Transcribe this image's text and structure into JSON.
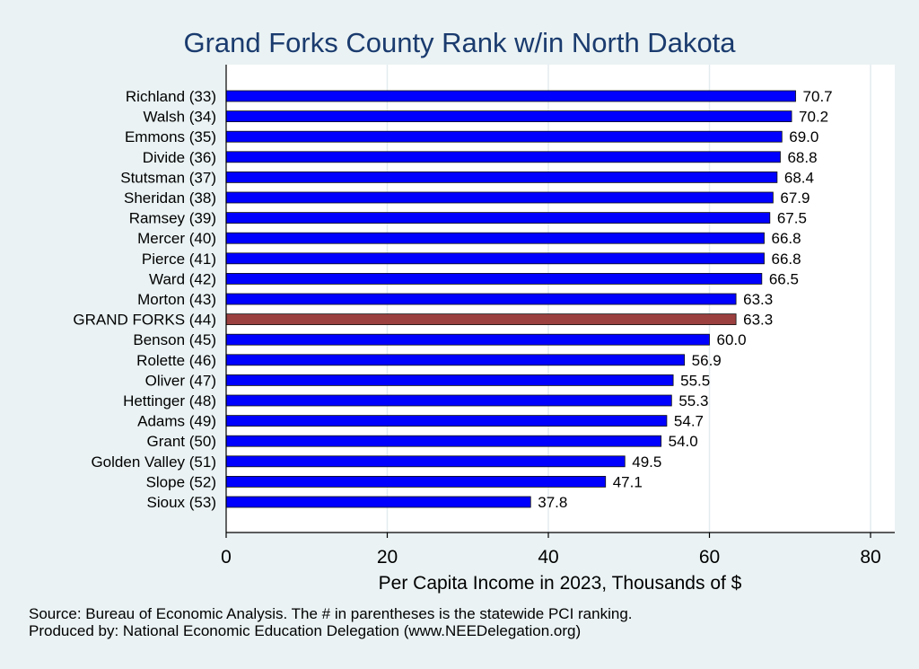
{
  "chart_data": {
    "type": "bar",
    "orientation": "horizontal",
    "title": "Grand Forks County Rank w/in North Dakota",
    "xlabel": "Per Capita Income in 2023, Thousands of $",
    "ylabel": "",
    "xlim": [
      0,
      80
    ],
    "xticks": [
      0,
      20,
      40,
      60,
      80
    ],
    "grid": true,
    "highlight_category": "GRAND FORKS (44)",
    "colors": {
      "bar": "#0000ff",
      "highlight": "#9b3f3f",
      "title": "#1a3b6e",
      "background": "#eaf2f3",
      "plot_background": "#ffffff"
    },
    "categories": [
      "Richland (33)",
      "Walsh (34)",
      "Emmons (35)",
      "Divide (36)",
      "Stutsman (37)",
      "Sheridan (38)",
      "Ramsey (39)",
      "Mercer (40)",
      "Pierce (41)",
      "Ward (42)",
      "Morton (43)",
      "GRAND FORKS (44)",
      "Benson (45)",
      "Rolette (46)",
      "Oliver (47)",
      "Hettinger (48)",
      "Adams (49)",
      "Grant (50)",
      "Golden Valley (51)",
      "Slope (52)",
      "Sioux (53)"
    ],
    "values": [
      70.7,
      70.2,
      69.0,
      68.8,
      68.4,
      67.9,
      67.5,
      66.8,
      66.8,
      66.5,
      63.3,
      63.3,
      60.0,
      56.9,
      55.5,
      55.3,
      54.7,
      54.0,
      49.5,
      47.1,
      37.8
    ],
    "value_labels": [
      "70.7",
      "70.2",
      "69.0",
      "68.8",
      "68.4",
      "67.9",
      "67.5",
      "66.8",
      "66.8",
      "66.5",
      "63.3",
      "63.3",
      "60.0",
      "56.9",
      "55.5",
      "55.3",
      "54.7",
      "54.0",
      "49.5",
      "47.1",
      "37.8"
    ]
  },
  "notes": [
    "Source: Bureau of Economic Analysis. The # in parentheses is the statewide PCI ranking.",
    "Produced by: National Economic Education Delegation (www.NEEDelegation.org)"
  ]
}
